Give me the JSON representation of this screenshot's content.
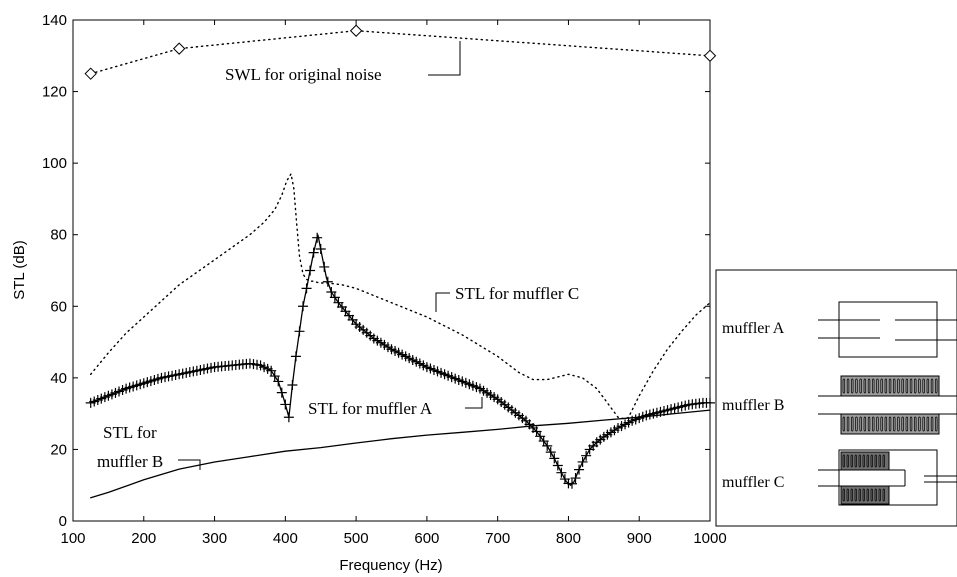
{
  "chart_data": {
    "type": "line",
    "title": "",
    "xlabel": "Frequency (Hz)",
    "ylabel": "STL (dB)",
    "xlim": [
      100,
      1000
    ],
    "ylim": [
      0,
      140
    ],
    "xticks": [
      100,
      200,
      300,
      400,
      500,
      600,
      700,
      800,
      900,
      1000
    ],
    "yticks": [
      0,
      20,
      40,
      60,
      80,
      100,
      120,
      140
    ],
    "grid": false,
    "legend": "none",
    "series": [
      {
        "name": "SWL for original noise",
        "style": "dotted-diamond",
        "x": [
          125,
          250,
          500,
          1000
        ],
        "y": [
          125,
          132,
          137,
          130
        ]
      },
      {
        "name": "STL for muffler A",
        "style": "solid-plus",
        "x": [
          125,
          150,
          175,
          200,
          225,
          250,
          275,
          300,
          325,
          350,
          365,
          380,
          390,
          398,
          405,
          410,
          415,
          420,
          425,
          430,
          435,
          440,
          446,
          452,
          458,
          465,
          475,
          500,
          525,
          550,
          575,
          600,
          625,
          650,
          675,
          700,
          720,
          740,
          755,
          770,
          780,
          790,
          797,
          803,
          808,
          813,
          820,
          830,
          840,
          850,
          870,
          890,
          910,
          930,
          950,
          970,
          990,
          1000
        ],
        "y": [
          33,
          35,
          37,
          38.5,
          40,
          41,
          42,
          43,
          43.5,
          44,
          43.5,
          42,
          39,
          34,
          29,
          38,
          46,
          53,
          60,
          65,
          70,
          75,
          80,
          74,
          68,
          64,
          61,
          55,
          51,
          48,
          45.5,
          43,
          41,
          39,
          37,
          34,
          31,
          28,
          25,
          21,
          17.5,
          13.5,
          11,
          10,
          11,
          13.5,
          16.5,
          20,
          22,
          23.5,
          26,
          28,
          29.5,
          30.5,
          31.5,
          32.5,
          33,
          33
        ]
      },
      {
        "name": "STL for muffler B",
        "style": "solid",
        "x": [
          125,
          150,
          200,
          250,
          300,
          350,
          400,
          450,
          500,
          550,
          600,
          650,
          700,
          750,
          800,
          850,
          900,
          950,
          1000
        ],
        "y": [
          6.5,
          8,
          11.5,
          14.5,
          16.5,
          18,
          19.5,
          20.5,
          21.8,
          23,
          24,
          24.8,
          25.6,
          26.6,
          27.3,
          28.2,
          29,
          30,
          31
        ]
      },
      {
        "name": "STL for muffler C",
        "style": "dotted",
        "x": [
          125,
          150,
          175,
          200,
          225,
          250,
          275,
          300,
          325,
          350,
          370,
          385,
          395,
          402,
          408,
          412,
          416,
          420,
          425,
          430,
          435,
          440,
          448,
          460,
          480,
          500,
          550,
          600,
          650,
          700,
          730,
          750,
          770,
          790,
          800,
          820,
          840,
          855,
          870,
          880,
          885,
          890,
          900,
          920,
          940,
          960,
          980,
          1000
        ],
        "y": [
          41,
          47,
          52.5,
          57,
          61.5,
          66,
          69.5,
          73,
          76.5,
          80,
          83.5,
          87,
          91,
          95,
          97,
          93,
          83,
          74,
          69,
          67.5,
          67,
          67,
          66.5,
          66.5,
          66,
          65,
          61,
          57,
          52,
          46,
          41.5,
          39.5,
          39.5,
          40.5,
          41,
          40,
          37,
          33,
          29,
          28.5,
          29,
          31,
          35,
          42,
          48,
          53,
          57.5,
          61
        ]
      }
    ],
    "annotations": [
      {
        "text": "SWL for original noise",
        "series": "SWL for original noise"
      },
      {
        "text": "STL for muffler C",
        "series": "STL for muffler C"
      },
      {
        "text": "STL for muffler A",
        "series": "STL for muffler A"
      },
      {
        "text": "STL for",
        "series": "STL for muffler B"
      },
      {
        "text": "muffler B",
        "series": "STL for muffler B"
      }
    ],
    "inset": {
      "labels": [
        "muffler A",
        "muffler B",
        "muffler C"
      ]
    }
  }
}
